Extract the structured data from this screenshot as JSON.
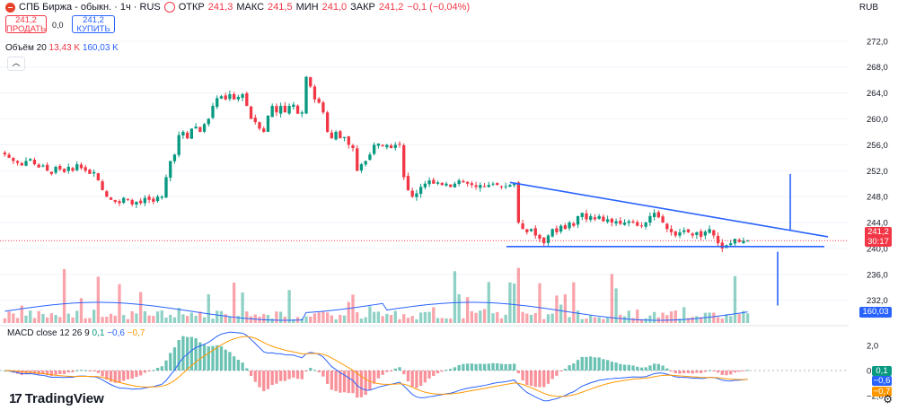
{
  "header": {
    "symbol": "СПБ Биржа - обыкн. · 1ч · RUS",
    "open_label": "ОТКР",
    "open": "241,3",
    "high_label": "МАКС",
    "high": "241,5",
    "low_label": "МИН",
    "low": "241,0",
    "close_label": "ЗАКР",
    "close": "241,2",
    "change": "−0,1 (−0,04%)",
    "currency": "RUB"
  },
  "trade": {
    "sell_price": "241,2",
    "sell_label": "ПРОДАТЬ",
    "spread": "0,0",
    "buy_price": "241,2",
    "buy_label": "КУПИТЬ"
  },
  "volume_legend": {
    "name": "Объём 20",
    "value": "13,43 K",
    "ma": "160,03 K"
  },
  "macd_legend": {
    "name": "MACD close 12 26 9",
    "hist": "0,1",
    "macd": "−0,6",
    "signal": "−0,7"
  },
  "price_tags": {
    "last": "241,2",
    "countdown": "30:17",
    "vol_ma": "160,03 K",
    "hist": "0,1",
    "macd": "−0,6",
    "signal": "−0,7"
  },
  "brand": "TradingView",
  "colors": {
    "up": "#089981",
    "down": "#f23645",
    "trendline": "#2962ff",
    "signal": "#ff9800"
  },
  "chart_data": {
    "type": "candlestick",
    "interval": "1h",
    "price_axis_ticks": [
      "272,0",
      "268,0",
      "264,0",
      "260,0",
      "256,0",
      "252,0",
      "248,0",
      "244,0",
      "240,0",
      "236,0",
      "232,0"
    ],
    "macd_axis_ticks": [
      "2,0",
      "0,0",
      "−2,0"
    ],
    "price_ylim": [
      228.5,
      273.5
    ],
    "macd_ylim": [
      -3.0,
      2.8
    ],
    "price_close_path": [
      254.5,
      254.0,
      253.5,
      253.2,
      252.8,
      253.5,
      253.8,
      253.0,
      252.5,
      252.8,
      252.0,
      251.5,
      252.6,
      252.2,
      251.8,
      252.6,
      252.0,
      253.0,
      252.4,
      252.0,
      251.5,
      251.8,
      250.5,
      249.0,
      248.0,
      247.5,
      247.2,
      247.0,
      247.8,
      247.5,
      246.8,
      247.2,
      247.0,
      247.8,
      247.5,
      247.2,
      248.0,
      248.0,
      251.0,
      253.5,
      254.5,
      257.5,
      258.0,
      257.0,
      258.5,
      258.8,
      258.0,
      259.2,
      260.0,
      262.0,
      263.2,
      263.5,
      263.0,
      263.8,
      263.0,
      263.4,
      263.8,
      262.0,
      260.0,
      259.5,
      258.5,
      258.0,
      260.5,
      262.0,
      261.0,
      262.0,
      261.0,
      262.0,
      262.2,
      260.8,
      261.0,
      266.5,
      265.0,
      263.0,
      262.5,
      261.0,
      258.0,
      257.0,
      258.0,
      257.0,
      257.2,
      256.0,
      255.5,
      252.0,
      253.0,
      253.5,
      254.5,
      256.0,
      256.2,
      255.8,
      256.0,
      255.5,
      256.0,
      256.0,
      251.0,
      249.0,
      248.0,
      248.5,
      249.5,
      250.0,
      250.5,
      250.0,
      250.2,
      249.8,
      250.0,
      249.5,
      250.0,
      250.5,
      250.2,
      250.0,
      249.8,
      249.5,
      249.8,
      249.6,
      249.8,
      250.0,
      249.8,
      249.5,
      249.6,
      249.8,
      250.0,
      244.0,
      243.0,
      242.5,
      243.0,
      242.0,
      241.5,
      240.8,
      242.0,
      243.0,
      242.5,
      243.5,
      243.0,
      244.0,
      243.5,
      245.0,
      245.5,
      244.5,
      245.0,
      244.5,
      245.0,
      244.2,
      244.5,
      244.0,
      244.2,
      243.8,
      244.0,
      244.2,
      244.0,
      243.5,
      243.5,
      244.0,
      245.0,
      245.5,
      244.8,
      244.0,
      243.0,
      242.5,
      242.0,
      242.5,
      242.8,
      242.5,
      242.0,
      242.5,
      241.8,
      242.6,
      243.0,
      242.0,
      240.8,
      240.0,
      240.5,
      240.8,
      241.5,
      241.0,
      241.2,
      241.2
    ],
    "volume_ma": "160,03 K",
    "trendlines": [
      {
        "from": {
          "bar": 119,
          "price": 250.2
        },
        "to": {
          "bar": 180,
          "price": 242.0
        },
        "note": "descending resistance"
      },
      {
        "from": {
          "bar": 119,
          "price": 240.5
        },
        "to": {
          "bar": 180,
          "price": 240.5
        },
        "note": "horizontal support"
      }
    ]
  }
}
